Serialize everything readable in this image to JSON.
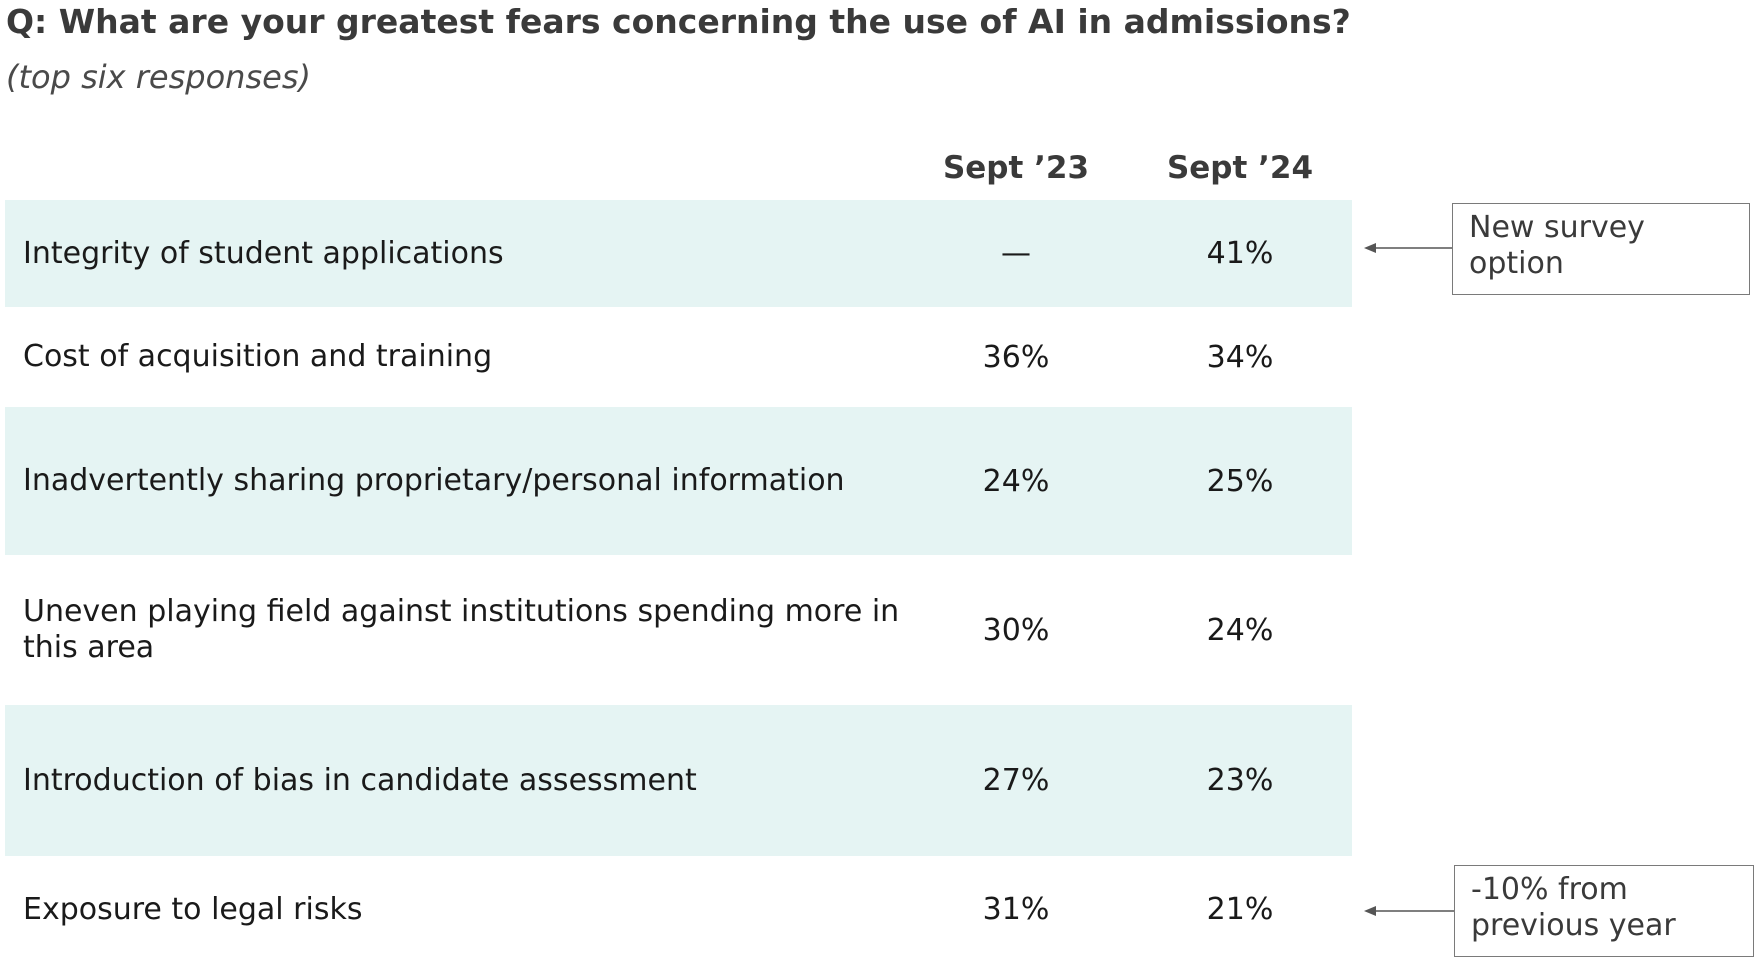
{
  "chart_data": {
    "type": "table",
    "title": "Q: What are your greatest fears concerning the use of AI in admissions?",
    "subtitle": "(top six responses)",
    "columns": [
      "Sept ’23",
      "Sept ’24"
    ],
    "rows": [
      {
        "label": "Integrity of student applications",
        "values": [
          "—",
          "41%"
        ],
        "shaded": true
      },
      {
        "label": "Cost of acquisition and training",
        "values": [
          "36%",
          "34%"
        ],
        "shaded": false
      },
      {
        "label": "Inadvertently sharing proprietary/personal information",
        "values": [
          "24%",
          "25%"
        ],
        "shaded": true
      },
      {
        "label": "Uneven playing field against institutions spending more in this area",
        "values": [
          "30%",
          "24%"
        ],
        "shaded": false
      },
      {
        "label": "Introduction of bias in candidate assessment",
        "values": [
          "27%",
          "23%"
        ],
        "shaded": true
      },
      {
        "label": "Exposure to legal risks",
        "values": [
          "31%",
          "21%"
        ],
        "shaded": false
      }
    ],
    "annotations": [
      {
        "text": "New survey option",
        "row": 0
      },
      {
        "text": "-10% from previous year",
        "row": 5
      }
    ]
  },
  "colors": {
    "row_shade": "#e5f4f3",
    "title": "#3a3a3a",
    "callout_border": "#7a7a7a"
  }
}
